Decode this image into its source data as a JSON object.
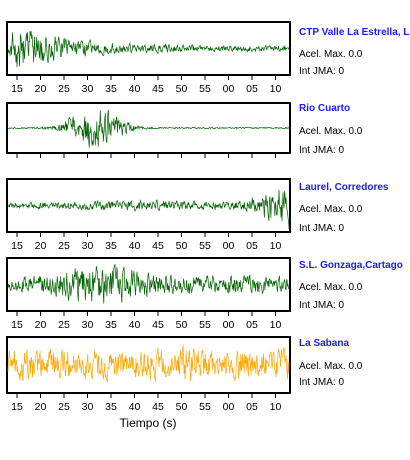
{
  "colors": {
    "station_name": "#1a1aff",
    "trace_default": "#006400",
    "trace_highlight": "#ffa500"
  },
  "chart_data": {
    "type": "line",
    "xlabel": "Tiempo (s)",
    "x_tick_labels": [
      "15",
      "20",
      "25",
      "30",
      "35",
      "40",
      "45",
      "50",
      "55",
      "00",
      "05",
      "10"
    ],
    "grid": false,
    "panels": [
      {
        "station": "CTP Valle La Estrella, L",
        "acel_max": "Acel. Max. 0.0",
        "int_jma": "Int JMA: 0",
        "color": "#006400",
        "shows_ticks": true
      },
      {
        "station": "Rio Cuarto",
        "acel_max": "Acel. Max. 0.0",
        "int_jma": "Int JMA: 0",
        "color": "#006400",
        "shows_ticks": false
      },
      {
        "station": "Laurel, Corredores",
        "acel_max": "Acel. Max. 0.0",
        "int_jma": "Int JMA: 0",
        "color": "#006400",
        "shows_ticks": true
      },
      {
        "station": "S.L. Gonzaga,Cartago",
        "acel_max": "Acel. Max. 0.0",
        "int_jma": "Int JMA: 0",
        "color": "#006400",
        "shows_ticks": true
      },
      {
        "station": "La Sabana",
        "acel_max": "Acel. Max. 0.0",
        "int_jma": "Int JMA: 0",
        "color": "#ffa500",
        "shows_ticks": true
      }
    ]
  }
}
